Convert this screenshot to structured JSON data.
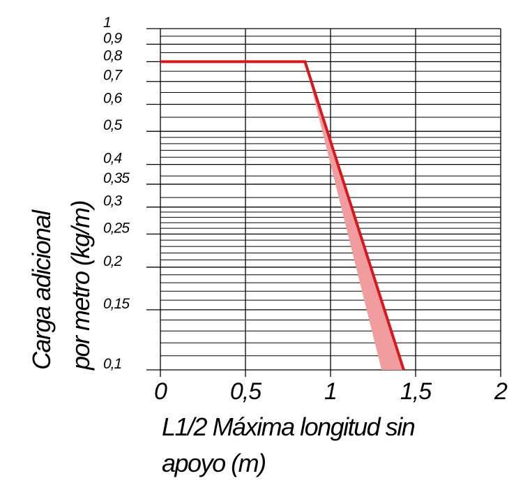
{
  "chart_data": {
    "type": "line",
    "ylabel": [
      "Carga adicional",
      "por metro (kg/m)"
    ],
    "xlabel": [
      "L1/2 Máxima longitud sin",
      "apoyo (m)"
    ],
    "xlim": [
      0,
      2
    ],
    "xticks": [
      0,
      {
        "value": 0.5,
        "label": "0,5"
      },
      1,
      {
        "value": 1.5,
        "label": "1,5"
      },
      2
    ],
    "ylim": [
      0.1,
      1
    ],
    "ylog": true,
    "yticks": [
      {
        "value": 0.1,
        "label": "0,1"
      },
      {
        "value": 0.15,
        "label": "0,15"
      },
      {
        "value": 0.2,
        "label": "0,2"
      },
      {
        "value": 0.25,
        "label": "0,25"
      },
      {
        "value": 0.3,
        "label": "0,3"
      },
      {
        "value": 0.35,
        "label": "0,35"
      },
      {
        "value": 0.4,
        "label": "0,4"
      },
      {
        "value": 0.5,
        "label": "0,5"
      },
      {
        "value": 0.6,
        "label": "0,6"
      },
      {
        "value": 0.7,
        "label": "0,7"
      },
      {
        "value": 0.8,
        "label": "0,8"
      },
      {
        "value": 0.9,
        "label": "0,9"
      },
      1
    ],
    "y_minor_grid": [
      0.11,
      0.12,
      0.13,
      0.14,
      0.16,
      0.17,
      0.18,
      0.19,
      0.21,
      0.22,
      0.23,
      0.24,
      0.26,
      0.27,
      0.28,
      0.29,
      0.32,
      0.37,
      0.42,
      0.44,
      0.46,
      0.48,
      0.55,
      0.65,
      0.75,
      0.85,
      0.95
    ],
    "grid": true,
    "series": [
      {
        "x": [
          0,
          0.85,
          1.43
        ],
        "values": [
          0.8,
          0.8,
          0.1
        ],
        "color": "#d7191f"
      }
    ],
    "band": {
      "x": [
        0.85,
        1.3
      ],
      "values": [
        0.8,
        0.1
      ],
      "color": "#f19c9e"
    }
  }
}
